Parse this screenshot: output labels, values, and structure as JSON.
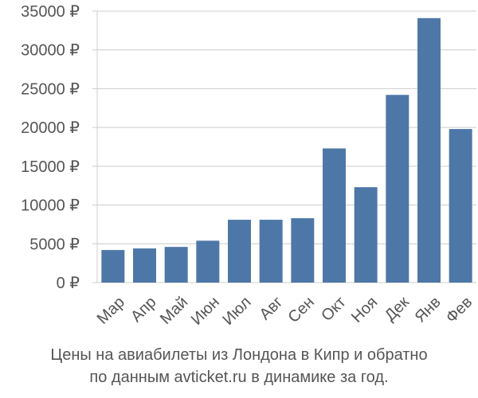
{
  "chart_data": {
    "type": "bar",
    "categories": [
      "Мар",
      "Апр",
      "Май",
      "Июн",
      "Июл",
      "Авг",
      "Сен",
      "Окт",
      "Ноя",
      "Дек",
      "Янв",
      "Фев"
    ],
    "values": [
      4200,
      4400,
      4600,
      5400,
      8100,
      8100,
      8300,
      17300,
      12300,
      24200,
      34100,
      19800
    ],
    "y_ticks": [
      "0 ₽",
      "5000 ₽",
      "10000 ₽",
      "15000 ₽",
      "20000 ₽",
      "25000 ₽",
      "30000 ₽",
      "35000 ₽"
    ],
    "y_tick_values": [
      0,
      5000,
      10000,
      15000,
      20000,
      25000,
      30000,
      35000
    ],
    "ylim": [
      0,
      35000
    ],
    "grid": "horizontal",
    "legend": "none",
    "bar_color": "#4d77a7"
  },
  "caption": {
    "line1": "Цены на авиабилеты из Лондона в Кипр и обратно",
    "line2": "по данным avticket.ru в динамике за год."
  }
}
